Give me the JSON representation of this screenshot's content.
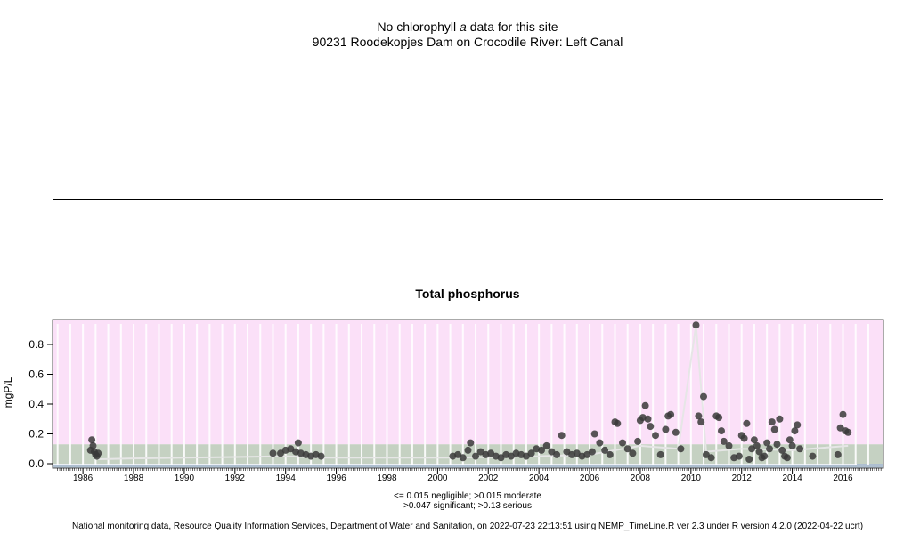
{
  "top_panel": {
    "line1_before": "No chlorophyll ",
    "line1_italic": "a",
    "line1_after": "  data for this site",
    "site": "90231 Roodekopjes Dam on Crocodile River: Left Canal"
  },
  "legend_text": {
    "line1": "<= 0.015 negligible; >0.015 moderate",
    "line2": ">0.047 significant; >0.13 serious"
  },
  "footer": "National monitoring data, Resource Quality Information Services, Department of Water and Sanitation, on 2022-07-23 22:13:51 using NEMP_TimeLine.R ver 2.3 under R version 4.2.0 (2022-04-22 ucrt)",
  "colors": {
    "serious_band": "#fbe0f8",
    "significant_band": "#c5d1c2",
    "moderate_band": "#aebfd0",
    "points": "#3a3a3a",
    "line": "#e6e6e6"
  },
  "chart_data": {
    "type": "scatter",
    "title": "Total phosphorus",
    "ylabel": "mgP/L",
    "xlabel": "",
    "xlim": [
      1984.8,
      2017.6
    ],
    "ylim": [
      0.0,
      0.95
    ],
    "x_ticks": [
      1986,
      1988,
      1990,
      1992,
      1994,
      1996,
      1998,
      2000,
      2002,
      2004,
      2006,
      2008,
      2010,
      2012,
      2014,
      2016
    ],
    "y_ticks": [
      0.0,
      0.2,
      0.4,
      0.6,
      0.8
    ],
    "y_tick_labels": [
      "0.0",
      "0.2",
      "0.4",
      "0.6",
      "0.8"
    ],
    "thresholds": [
      {
        "label": "negligible",
        "upper": 0.015
      },
      {
        "label": "moderate",
        "upper": 0.047
      },
      {
        "label": "significant",
        "upper": 0.13
      },
      {
        "label": "serious",
        "upper": null
      }
    ],
    "series": [
      {
        "points": [
          [
            1986.3,
            0.09
          ],
          [
            1986.35,
            0.16
          ],
          [
            1986.4,
            0.12
          ],
          [
            1986.45,
            0.08
          ],
          [
            1986.5,
            0.06
          ],
          [
            1986.55,
            0.05
          ],
          [
            1986.6,
            0.07
          ],
          [
            1993.5,
            0.07
          ],
          [
            1993.8,
            0.07
          ],
          [
            1994.0,
            0.09
          ],
          [
            1994.2,
            0.1
          ],
          [
            1994.4,
            0.08
          ],
          [
            1994.6,
            0.07
          ],
          [
            1994.8,
            0.06
          ],
          [
            1995.0,
            0.05
          ],
          [
            1995.2,
            0.06
          ],
          [
            1995.4,
            0.05
          ],
          [
            1994.5,
            0.14
          ],
          [
            2000.6,
            0.05
          ],
          [
            2000.8,
            0.06
          ],
          [
            2001.0,
            0.04
          ],
          [
            2001.2,
            0.09
          ],
          [
            2001.3,
            0.14
          ],
          [
            2001.5,
            0.05
          ],
          [
            2001.7,
            0.08
          ],
          [
            2001.9,
            0.06
          ],
          [
            2002.1,
            0.07
          ],
          [
            2002.3,
            0.05
          ],
          [
            2002.5,
            0.04
          ],
          [
            2002.7,
            0.06
          ],
          [
            2002.9,
            0.05
          ],
          [
            2003.1,
            0.07
          ],
          [
            2003.3,
            0.06
          ],
          [
            2003.5,
            0.05
          ],
          [
            2003.7,
            0.07
          ],
          [
            2003.9,
            0.1
          ],
          [
            2004.1,
            0.09
          ],
          [
            2004.3,
            0.12
          ],
          [
            2004.5,
            0.08
          ],
          [
            2004.7,
            0.06
          ],
          [
            2004.9,
            0.19
          ],
          [
            2005.1,
            0.08
          ],
          [
            2005.3,
            0.06
          ],
          [
            2005.5,
            0.07
          ],
          [
            2005.7,
            0.05
          ],
          [
            2005.9,
            0.06
          ],
          [
            2006.1,
            0.08
          ],
          [
            2006.2,
            0.2
          ],
          [
            2006.4,
            0.14
          ],
          [
            2006.6,
            0.09
          ],
          [
            2006.8,
            0.06
          ],
          [
            2007.0,
            0.28
          ],
          [
            2007.1,
            0.27
          ],
          [
            2007.3,
            0.14
          ],
          [
            2007.5,
            0.1
          ],
          [
            2007.7,
            0.07
          ],
          [
            2007.9,
            0.15
          ],
          [
            2008.0,
            0.29
          ],
          [
            2008.1,
            0.31
          ],
          [
            2008.2,
            0.39
          ],
          [
            2008.3,
            0.3
          ],
          [
            2008.4,
            0.25
          ],
          [
            2008.6,
            0.19
          ],
          [
            2008.8,
            0.06
          ],
          [
            2009.0,
            0.23
          ],
          [
            2009.1,
            0.32
          ],
          [
            2009.2,
            0.33
          ],
          [
            2009.4,
            0.21
          ],
          [
            2009.6,
            0.1
          ],
          [
            2010.2,
            0.93
          ],
          [
            2010.3,
            0.32
          ],
          [
            2010.4,
            0.28
          ],
          [
            2010.5,
            0.45
          ],
          [
            2010.6,
            0.06
          ],
          [
            2010.8,
            0.04
          ],
          [
            2011.0,
            0.32
          ],
          [
            2011.1,
            0.31
          ],
          [
            2011.2,
            0.22
          ],
          [
            2011.3,
            0.15
          ],
          [
            2011.5,
            0.12
          ],
          [
            2011.7,
            0.04
          ],
          [
            2011.9,
            0.05
          ],
          [
            2012.0,
            0.19
          ],
          [
            2012.1,
            0.17
          ],
          [
            2012.2,
            0.27
          ],
          [
            2012.3,
            0.03
          ],
          [
            2012.4,
            0.1
          ],
          [
            2012.5,
            0.16
          ],
          [
            2012.6,
            0.12
          ],
          [
            2012.7,
            0.08
          ],
          [
            2012.8,
            0.04
          ],
          [
            2012.9,
            0.05
          ],
          [
            2013.0,
            0.14
          ],
          [
            2013.1,
            0.1
          ],
          [
            2013.2,
            0.28
          ],
          [
            2013.3,
            0.23
          ],
          [
            2013.4,
            0.13
          ],
          [
            2013.5,
            0.3
          ],
          [
            2013.6,
            0.09
          ],
          [
            2013.7,
            0.05
          ],
          [
            2013.8,
            0.04
          ],
          [
            2013.9,
            0.16
          ],
          [
            2014.0,
            0.12
          ],
          [
            2014.1,
            0.22
          ],
          [
            2014.2,
            0.26
          ],
          [
            2014.3,
            0.1
          ],
          [
            2014.8,
            0.05
          ],
          [
            2015.8,
            0.06
          ],
          [
            2015.9,
            0.24
          ],
          [
            2016.0,
            0.33
          ],
          [
            2016.1,
            0.22
          ],
          [
            2016.2,
            0.21
          ]
        ],
        "line": [
          [
            1986.6,
            0.03
          ],
          [
            1988.0,
            0.035
          ],
          [
            1990.0,
            0.04
          ],
          [
            1992.0,
            0.045
          ],
          [
            1994.0,
            0.05
          ],
          [
            1995.5,
            0.04
          ],
          [
            2000.6,
            0.04
          ],
          [
            2004.0,
            0.05
          ],
          [
            2006.0,
            0.06
          ],
          [
            2008.0,
            0.12
          ],
          [
            2009.5,
            0.1
          ],
          [
            2010.2,
            0.93
          ],
          [
            2010.6,
            0.08
          ],
          [
            2012.0,
            0.1
          ],
          [
            2014.0,
            0.09
          ],
          [
            2016.2,
            0.12
          ]
        ]
      }
    ]
  }
}
